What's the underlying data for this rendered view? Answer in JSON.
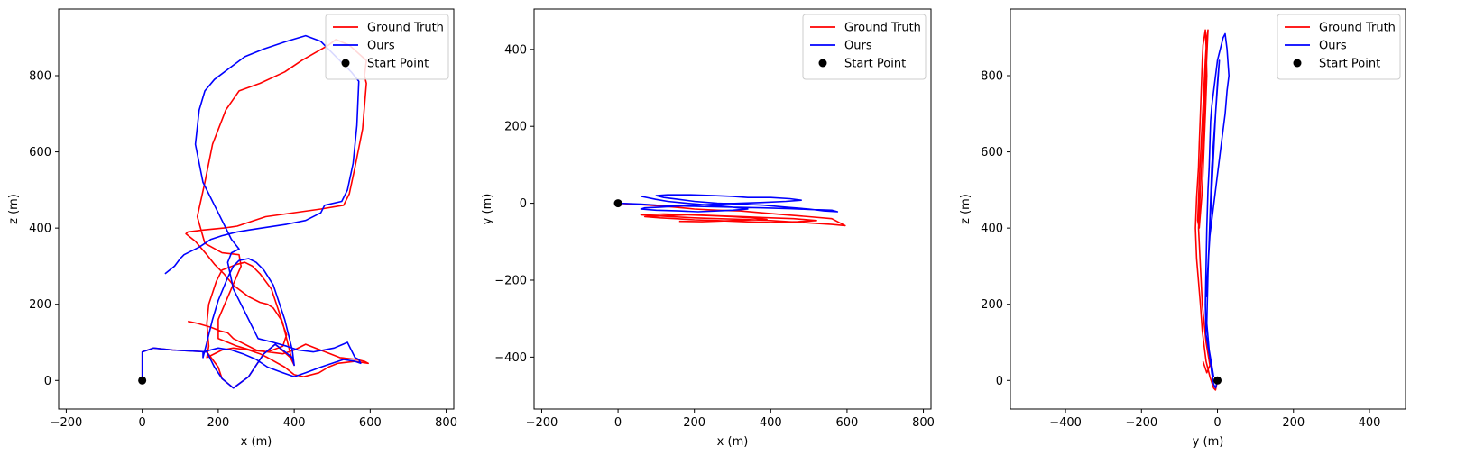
{
  "chart_data": [
    {
      "type": "line",
      "xlabel": "x (m)",
      "ylabel": "z (m)",
      "xlim": [
        -220,
        820
      ],
      "ylim": [
        -75,
        975
      ],
      "xticks": [
        -200,
        0,
        200,
        400,
        600,
        800
      ],
      "yticks": [
        0,
        200,
        400,
        600,
        800
      ],
      "xtick_labels": [
        "−200",
        "0",
        "200",
        "400",
        "600",
        "800"
      ],
      "ytick_labels": [
        "0",
        "200",
        "400",
        "600",
        "800"
      ],
      "grid": false,
      "legend_position": "top-right",
      "legend": [
        "Ground Truth",
        "Ours",
        "Start Point"
      ],
      "series": [
        {
          "name": "Ground Truth",
          "color": "#ff0000",
          "x": [
            0,
            0,
            30,
            80,
            170,
            200,
            210,
            240,
            280,
            320,
            350,
            390,
            400,
            390,
            370,
            340,
            310,
            290,
            270,
            250,
            210,
            195,
            175,
            170,
            175,
            170,
            210,
            240,
            280,
            310,
            330,
            375,
            400,
            425,
            465,
            490,
            515,
            560,
            595,
            585,
            565,
            520,
            430,
            400,
            370,
            330,
            285,
            250,
            200,
            200,
            230,
            260,
            255,
            210,
            165,
            145,
            165,
            185,
            220,
            255,
            310,
            375,
            420,
            455,
            490,
            510,
            545,
            590,
            585,
            590,
            580,
            560,
            545,
            530,
            470,
            325,
            250,
            215,
            160,
            120,
            115,
            140,
            170,
            190,
            215,
            240,
            280,
            300,
            310,
            330,
            345,
            365,
            380,
            370,
            330,
            300,
            270,
            240,
            225,
            205,
            180,
            145,
            120
          ],
          "y": [
            0,
            75,
            85,
            80,
            75,
            35,
            5,
            -20,
            10,
            70,
            95,
            60,
            40,
            70,
            150,
            240,
            280,
            300,
            310,
            305,
            290,
            260,
            200,
            150,
            90,
            60,
            80,
            85,
            80,
            70,
            60,
            35,
            15,
            10,
            20,
            35,
            45,
            50,
            45,
            50,
            55,
            60,
            95,
            80,
            70,
            75,
            80,
            90,
            110,
            160,
            230,
            300,
            330,
            335,
            360,
            430,
            520,
            620,
            710,
            760,
            780,
            810,
            840,
            860,
            880,
            895,
            880,
            840,
            800,
            780,
            660,
            560,
            490,
            460,
            450,
            430,
            405,
            400,
            395,
            390,
            385,
            365,
            330,
            305,
            280,
            250,
            220,
            210,
            205,
            200,
            190,
            160,
            120,
            90,
            75,
            80,
            95,
            110,
            125,
            130,
            140,
            150,
            155
          ],
          "marker": "none"
        }
      ],
      "start_point": {
        "x": 0,
        "y": 0
      }
    },
    {
      "type": "line",
      "xlabel": "x (m)",
      "ylabel": "y (m)",
      "xlim": [
        -220,
        820
      ],
      "ylim": [
        -535,
        505
      ],
      "xticks": [
        -200,
        0,
        200,
        400,
        600,
        800
      ],
      "yticks": [
        -400,
        -200,
        0,
        200,
        400
      ],
      "xtick_labels": [
        "−200",
        "0",
        "200",
        "400",
        "600",
        "800"
      ],
      "ytick_labels": [
        "−400",
        "−200",
        "0",
        "200",
        "400"
      ],
      "grid": false,
      "legend_position": "top-right",
      "legend": [
        "Ground Truth",
        "Ours",
        "Start Point"
      ],
      "series": [
        {
          "name": "Ground Truth",
          "color": "#ff0000",
          "x": [
            0,
            80,
            150,
            200,
            260,
            320,
            380,
            440,
            500,
            560,
            595,
            560,
            480,
            400,
            330,
            260,
            200,
            140,
            90,
            60,
            120,
            200,
            270,
            330,
            400,
            460,
            520,
            470,
            400,
            330,
            260,
            200,
            150,
            110,
            70,
            110,
            180,
            240,
            300,
            350,
            390,
            300,
            220,
            160
          ],
          "y": [
            0,
            -5,
            -10,
            -15,
            -18,
            -20,
            -25,
            -30,
            -35,
            -40,
            -58,
            -55,
            -50,
            -45,
            -42,
            -40,
            -38,
            -35,
            -32,
            -30,
            -28,
            -30,
            -33,
            -35,
            -38,
            -40,
            -45,
            -48,
            -50,
            -48,
            -45,
            -43,
            -40,
            -38,
            -35,
            -33,
            -30,
            -32,
            -35,
            -38,
            -42,
            -45,
            -48,
            -47
          ],
          "marker": "none"
        },
        {
          "name": "Ours",
          "color": "#0000ff",
          "x": [
            0,
            60,
            100,
            200,
            300,
            380,
            450,
            500,
            560,
            575,
            540,
            500,
            440,
            380,
            320,
            260,
            200,
            160,
            120,
            100,
            130,
            190,
            250,
            300,
            340,
            400,
            450,
            480,
            440,
            380,
            320,
            260,
            200,
            150,
            110,
            70,
            60,
            100,
            160,
            210,
            260,
            300,
            340,
            300,
            240,
            180,
            130,
            100,
            60
          ],
          "y": [
            0,
            -2,
            -5,
            -8,
            -10,
            -12,
            -14,
            -16,
            -18,
            -22,
            -20,
            -15,
            -10,
            -5,
            -2,
            0,
            5,
            10,
            15,
            20,
            22,
            22,
            20,
            18,
            15,
            15,
            12,
            8,
            5,
            2,
            0,
            -2,
            -5,
            -8,
            -10,
            -12,
            -15,
            -18,
            -20,
            -22,
            -20,
            -18,
            -15,
            -10,
            -5,
            0,
            5,
            10,
            18
          ],
          "marker": "none"
        }
      ],
      "start_point": {
        "x": 0,
        "y": 0
      }
    },
    {
      "type": "line",
      "xlabel": "y (m)",
      "ylabel": "z (m)",
      "xlim": [
        -545,
        495
      ],
      "ylim": [
        -75,
        975
      ],
      "xticks": [
        -400,
        -200,
        0,
        200,
        400
      ],
      "yticks": [
        0,
        200,
        400,
        600,
        800
      ],
      "xtick_labels": [
        "−400",
        "−200",
        "0",
        "200",
        "400"
      ],
      "ytick_labels": [
        "0",
        "200",
        "400",
        "600",
        "800"
      ],
      "grid": false,
      "legend_position": "top-right",
      "legend": [
        "Ground Truth",
        "Ours",
        "Start Point"
      ],
      "series": [
        {
          "name": "Ground Truth",
          "color": "#ff0000",
          "x": [
            0,
            -5,
            -10,
            -20,
            -30,
            -35,
            -40,
            -45,
            -50,
            -55,
            -58,
            -55,
            -50,
            -48,
            -45,
            -42,
            -40,
            -38,
            -35,
            -32,
            -30,
            -28,
            -32,
            -36,
            -40,
            -44,
            -48,
            -52,
            -48,
            -44,
            -40,
            -36,
            -32,
            -28,
            -25,
            -35,
            -45,
            -50,
            -45,
            -40,
            -30,
            -20,
            -28,
            -38
          ],
          "y": [
            0,
            -25,
            -20,
            10,
            50,
            90,
            130,
            200,
            260,
            320,
            400,
            480,
            560,
            620,
            700,
            780,
            840,
            880,
            900,
            920,
            880,
            800,
            700,
            600,
            500,
            450,
            400,
            420,
            520,
            600,
            680,
            760,
            840,
            900,
            920,
            700,
            500,
            400,
            300,
            200,
            100,
            40,
            20,
            50
          ],
          "marker": "none"
        },
        {
          "name": "Ours",
          "color": "#0000ff",
          "x": [
            0,
            -5,
            -10,
            -15,
            -20,
            -25,
            -30,
            -32,
            -30,
            -28,
            -25,
            -22,
            -20,
            -18,
            -15,
            -10,
            -5,
            0,
            5,
            10,
            15,
            20,
            25,
            30,
            25,
            20,
            10,
            0,
            -10,
            -20,
            -25,
            -28,
            -30,
            -25,
            -20,
            -15,
            -10,
            -5,
            0,
            5,
            -5,
            -15,
            -20,
            -25,
            -28,
            -22,
            -15,
            -10
          ],
          "y": [
            0,
            -20,
            -10,
            20,
            60,
            90,
            120,
            200,
            300,
            400,
            500,
            560,
            620,
            680,
            720,
            760,
            800,
            840,
            860,
            880,
            900,
            910,
            870,
            800,
            760,
            700,
            620,
            540,
            460,
            380,
            300,
            240,
            220,
            300,
            400,
            500,
            600,
            700,
            780,
            840,
            700,
            560,
            420,
            280,
            150,
            80,
            40,
            10
          ],
          "marker": "none"
        }
      ],
      "start_point": {
        "x": 0,
        "y": 0
      }
    }
  ],
  "panel_series_extra": [
    {
      "name": "Ours",
      "color": "#0000ff",
      "x": [
        0,
        0,
        30,
        80,
        170,
        190,
        210,
        240,
        280,
        320,
        350,
        395,
        400,
        395,
        375,
        345,
        320,
        300,
        280,
        255,
        240,
        225,
        200,
        185,
        170,
        160,
        160,
        200,
        235,
        265,
        300,
        330,
        370,
        400,
        430,
        470,
        500,
        530,
        560,
        575,
        570,
        560,
        540,
        505,
        450,
        410,
        380,
        345,
        305,
        275,
        240,
        225,
        235,
        255,
        235,
        200,
        160,
        140,
        150,
        165,
        190,
        230,
        270,
        320,
        380,
        430,
        470,
        510,
        550,
        570,
        565,
        555,
        540,
        525,
        480,
        470,
        430,
        380,
        315,
        280,
        250,
        210,
        180,
        150,
        110,
        100,
        85,
        60
      ],
      "y": [
        0,
        75,
        85,
        80,
        75,
        35,
        5,
        -20,
        10,
        70,
        95,
        60,
        40,
        80,
        160,
        250,
        290,
        310,
        320,
        315,
        300,
        270,
        210,
        160,
        100,
        60,
        75,
        85,
        80,
        70,
        55,
        35,
        20,
        10,
        20,
        35,
        45,
        55,
        50,
        45,
        55,
        60,
        100,
        85,
        75,
        80,
        90,
        100,
        110,
        170,
        240,
        310,
        335,
        345,
        370,
        440,
        520,
        620,
        710,
        760,
        790,
        820,
        850,
        870,
        890,
        905,
        890,
        850,
        810,
        785,
        670,
        570,
        500,
        470,
        460,
        440,
        420,
        410,
        400,
        395,
        390,
        380,
        370,
        350,
        330,
        320,
        300,
        280
      ],
      "panel": 0
    }
  ]
}
